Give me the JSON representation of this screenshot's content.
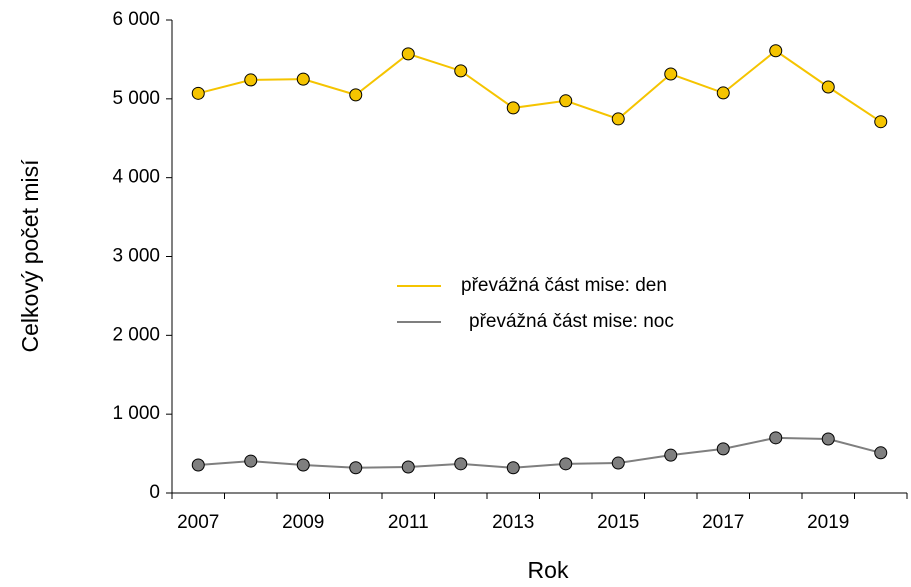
{
  "chart_data": {
    "type": "line",
    "x_label": "Rok",
    "y_label": "Celkový počet misí",
    "categories": [
      "2007",
      null,
      "2009",
      null,
      "2011",
      null,
      "2013",
      null,
      "2015",
      null,
      "2017",
      null,
      "2019",
      null
    ],
    "series": [
      {
        "name": "převážná část mise: den",
        "color": "#f5c400",
        "values": [
          5070,
          5240,
          5250,
          5050,
          5570,
          5355,
          4885,
          4975,
          4745,
          5315,
          5075,
          5610,
          5150,
          4710
        ]
      },
      {
        "name": "převážná část mise: noc",
        "color": "#7f7f7f",
        "values": [
          355,
          405,
          355,
          320,
          330,
          370,
          320,
          370,
          380,
          480,
          560,
          700,
          685,
          510
        ]
      }
    ],
    "ylim": [
      0,
      6000
    ],
    "yticks": [
      0,
      {
        "value": 1000,
        "label": "1 000"
      },
      {
        "value": 2000,
        "label": "2 000"
      },
      {
        "value": 3000,
        "label": "3 000"
      },
      {
        "value": 4000,
        "label": "4 000"
      },
      {
        "value": 5000,
        "label": "5 000"
      },
      {
        "value": 6000,
        "label": "6 000"
      }
    ],
    "grid": false,
    "legend": "center"
  }
}
